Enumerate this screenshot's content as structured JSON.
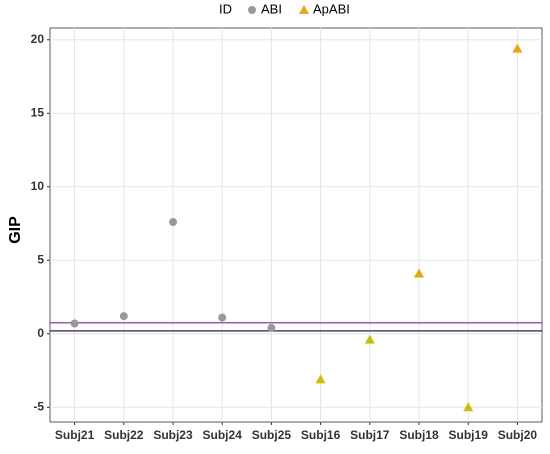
{
  "chart_data": {
    "type": "scatter",
    "legend_title": "ID",
    "y_label": "GIP",
    "categories": [
      "Subj21",
      "Subj22",
      "Subj23",
      "Subj24",
      "Subj25",
      "Subj16",
      "Subj17",
      "Subj18",
      "Subj19",
      "Subj20"
    ],
    "series": [
      {
        "name": "ABI",
        "color": "#999999",
        "marker": "circle",
        "values": [
          0.7,
          1.2,
          7.6,
          1.1,
          0.4,
          null,
          null,
          null,
          null,
          null
        ]
      },
      {
        "name": "ApABI",
        "color": "#f0a30a",
        "marker": "triangle",
        "point_colors": [
          null,
          null,
          null,
          null,
          null,
          "#c9c000",
          "#c9c000",
          "#e6a800",
          "#c9c000",
          "#f0a30a"
        ],
        "values": [
          null,
          null,
          null,
          null,
          null,
          -3.1,
          -0.4,
          4.1,
          -5.0,
          19.4
        ]
      }
    ],
    "hlines": [
      {
        "value": 0.75,
        "color": "#9b59c6"
      },
      {
        "value": 0.2,
        "color": "#5a3d6b"
      }
    ],
    "ylim": [
      -6.0,
      20.8
    ],
    "yticks": [
      -5,
      0,
      5,
      10,
      15,
      20
    ],
    "grid": true,
    "legend_position": "top"
  }
}
